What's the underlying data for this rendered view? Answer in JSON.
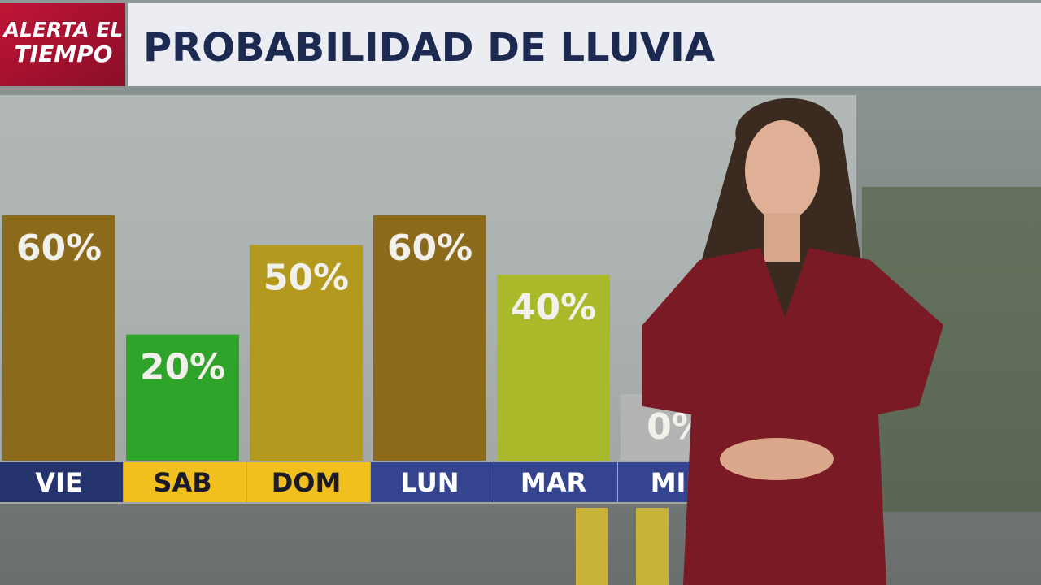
{
  "logo": {
    "line1": "ALERTA EL",
    "line2": "TIEMPO"
  },
  "chart_data": {
    "type": "bar",
    "title": "PROBABILIDAD DE LLUVIA",
    "categories": [
      "VIE",
      "SAB",
      "DOM",
      "LUN",
      "MAR",
      "MIE"
    ],
    "values": [
      60,
      20,
      50,
      60,
      40,
      0
    ],
    "value_labels": [
      "60%",
      "20%",
      "50%",
      "60%",
      "40%",
      "0%"
    ],
    "colors": [
      "#8c6a1c",
      "#2ea52a",
      "#b39a1e",
      "#8c6a1c",
      "#a9b92a",
      "#b4b4b4"
    ],
    "category_colors": [
      "#26346e",
      "#f2c01e",
      "#f2c01e",
      "#34448e",
      "#34448e",
      "#34448e"
    ]
  }
}
